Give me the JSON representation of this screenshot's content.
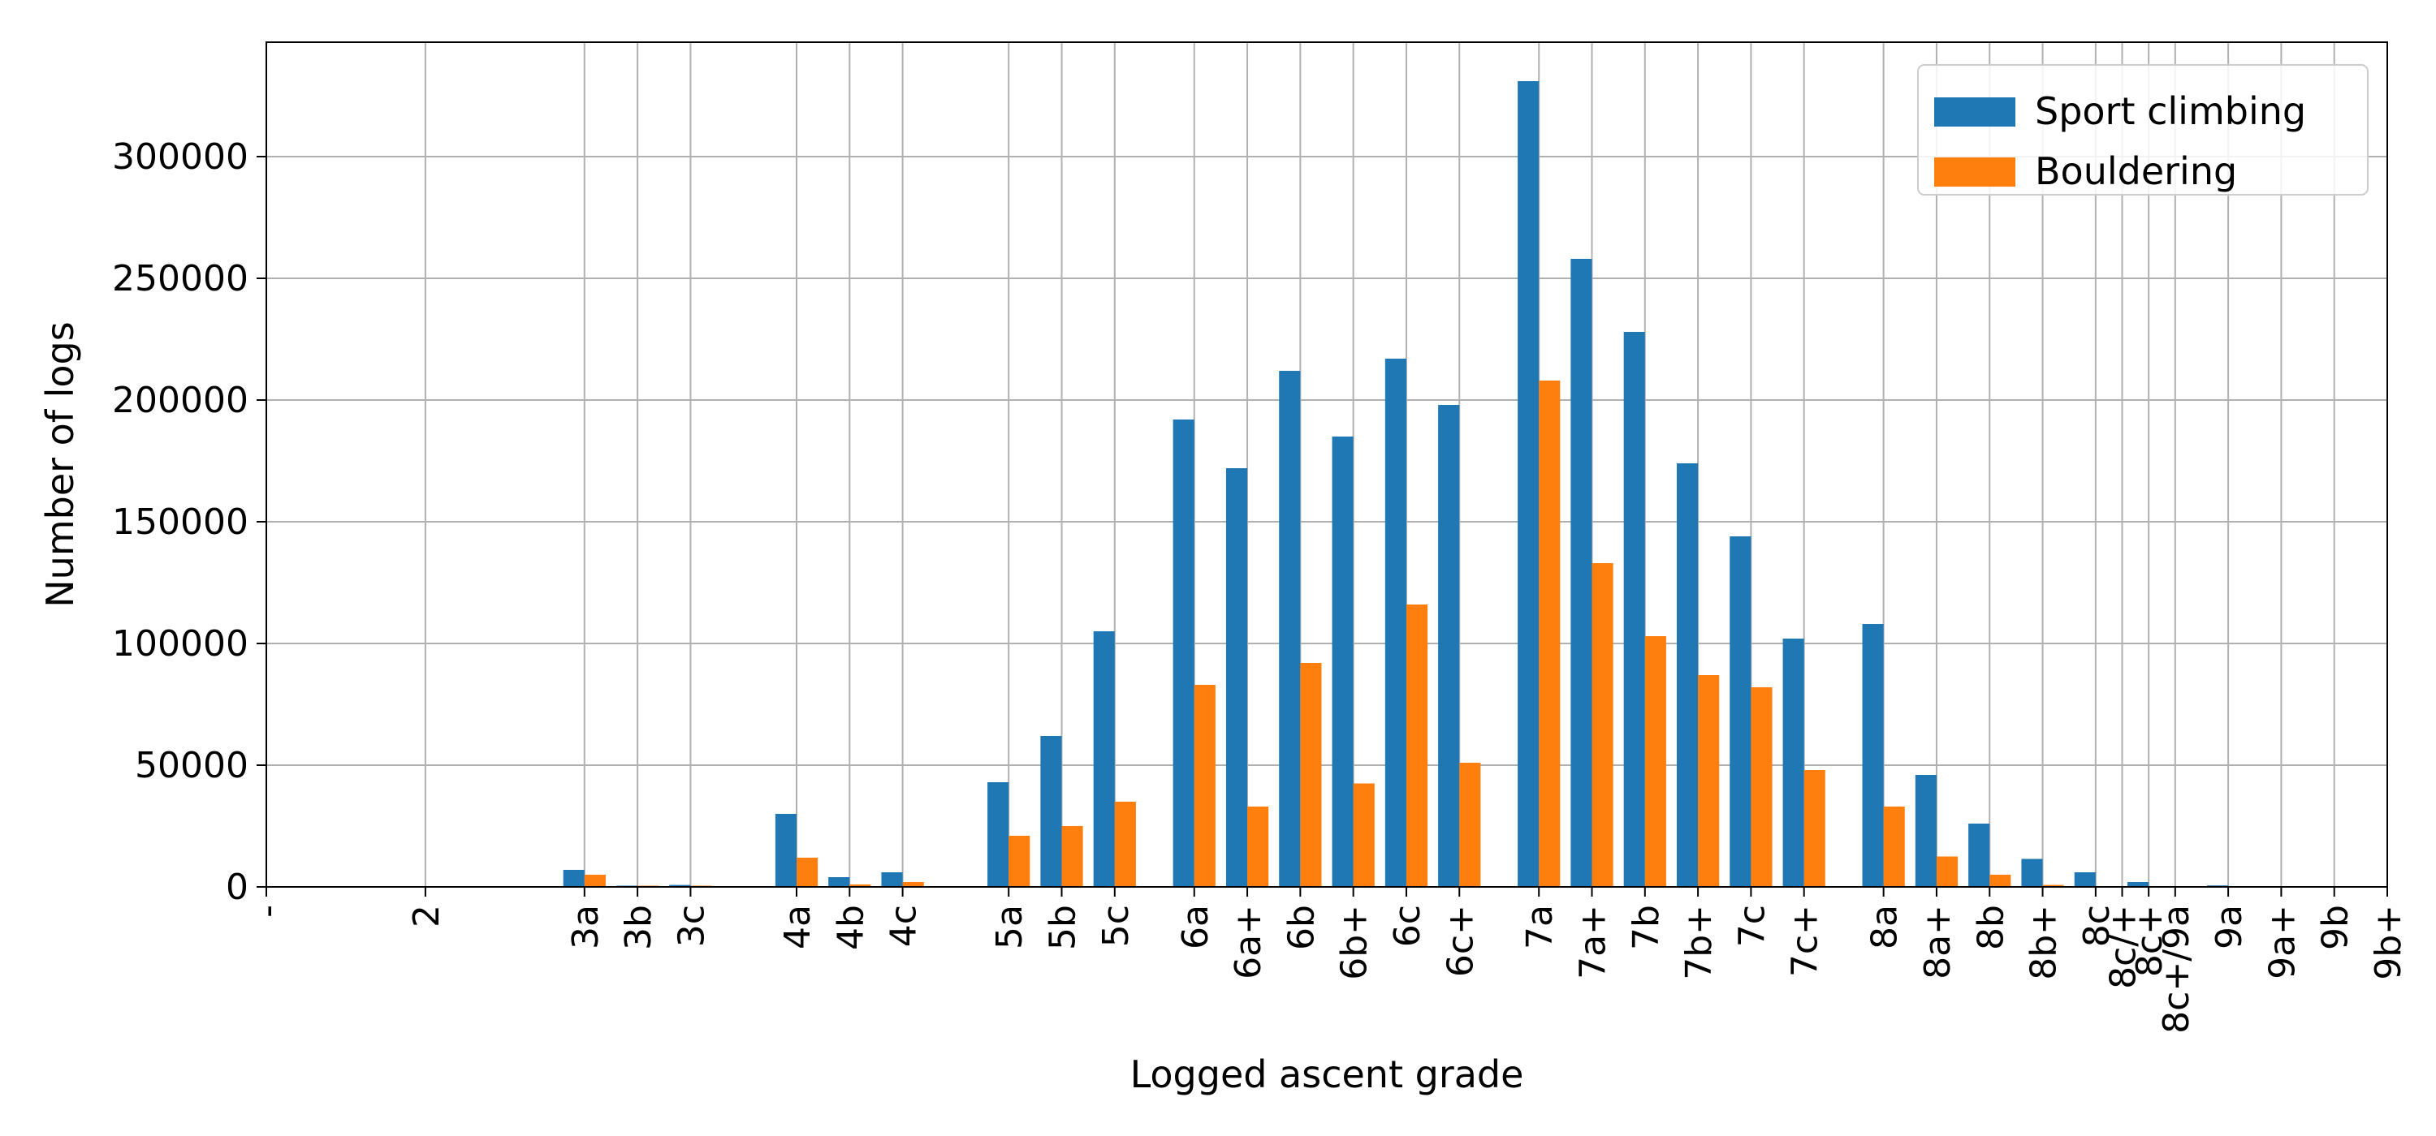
{
  "chart_data": {
    "type": "bar",
    "xlabel": "Logged ascent grade",
    "ylabel": "Number of logs",
    "ylim": [
      0,
      347000
    ],
    "yticks": [
      0,
      50000,
      100000,
      150000,
      200000,
      250000,
      300000
    ],
    "grid": true,
    "legend": "top-right",
    "x_range": [
      0,
      40
    ],
    "ticks": [
      {
        "label": "-",
        "x": 0
      },
      {
        "label": "2",
        "x": 3
      },
      {
        "label": "3a",
        "x": 6
      },
      {
        "label": "3b",
        "x": 7
      },
      {
        "label": "3c",
        "x": 8
      },
      {
        "label": "4a",
        "x": 10
      },
      {
        "label": "4b",
        "x": 11
      },
      {
        "label": "4c",
        "x": 12
      },
      {
        "label": "5a",
        "x": 14
      },
      {
        "label": "5b",
        "x": 15
      },
      {
        "label": "5c",
        "x": 16
      },
      {
        "label": "6a",
        "x": 17.5
      },
      {
        "label": "6a+",
        "x": 18.5
      },
      {
        "label": "6b",
        "x": 19.5
      },
      {
        "label": "6b+",
        "x": 20.5
      },
      {
        "label": "6c",
        "x": 21.5
      },
      {
        "label": "6c+",
        "x": 22.5
      },
      {
        "label": "7a",
        "x": 24
      },
      {
        "label": "7a+",
        "x": 25
      },
      {
        "label": "7b",
        "x": 26
      },
      {
        "label": "7b+",
        "x": 27
      },
      {
        "label": "7c",
        "x": 28
      },
      {
        "label": "7c+",
        "x": 29
      },
      {
        "label": "8a",
        "x": 30.5
      },
      {
        "label": "8a+",
        "x": 31.5
      },
      {
        "label": "8b",
        "x": 32.5
      },
      {
        "label": "8b+",
        "x": 33.5
      },
      {
        "label": "8c",
        "x": 34.5
      },
      {
        "label": "8c/+",
        "x": 35
      },
      {
        "label": "8c+",
        "x": 35.5
      },
      {
        "label": "8c+/9a",
        "x": 36
      },
      {
        "label": "9a",
        "x": 37
      },
      {
        "label": "9a+",
        "x": 38
      },
      {
        "label": "9b",
        "x": 39
      },
      {
        "label": "9b+",
        "x": 40
      }
    ],
    "series": [
      {
        "name": "Sport climbing",
        "color": "#1f77b4",
        "points": [
          {
            "x": 6,
            "value": 7000
          },
          {
            "x": 7,
            "value": 500
          },
          {
            "x": 8,
            "value": 800
          },
          {
            "x": 10,
            "value": 30000
          },
          {
            "x": 11,
            "value": 4000
          },
          {
            "x": 12,
            "value": 6000
          },
          {
            "x": 14,
            "value": 43000
          },
          {
            "x": 15,
            "value": 62000
          },
          {
            "x": 16,
            "value": 105000
          },
          {
            "x": 17.5,
            "value": 192000
          },
          {
            "x": 18.5,
            "value": 172000
          },
          {
            "x": 19.5,
            "value": 212000
          },
          {
            "x": 20.5,
            "value": 185000
          },
          {
            "x": 21.5,
            "value": 217000
          },
          {
            "x": 22.5,
            "value": 198000
          },
          {
            "x": 24,
            "value": 331000
          },
          {
            "x": 25,
            "value": 258000
          },
          {
            "x": 26,
            "value": 228000
          },
          {
            "x": 27,
            "value": 174000
          },
          {
            "x": 28,
            "value": 144000
          },
          {
            "x": 29,
            "value": 102000
          },
          {
            "x": 30.5,
            "value": 108000
          },
          {
            "x": 31.5,
            "value": 46000
          },
          {
            "x": 32.5,
            "value": 26000
          },
          {
            "x": 33.5,
            "value": 11500
          },
          {
            "x": 34.5,
            "value": 6000
          },
          {
            "x": 35.5,
            "value": 2000
          },
          {
            "x": 36,
            "value": 300
          },
          {
            "x": 37,
            "value": 600
          }
        ]
      },
      {
        "name": "Bouldering",
        "color": "#ff7f0e",
        "points": [
          {
            "x": 3,
            "value": 300
          },
          {
            "x": 6,
            "value": 5000
          },
          {
            "x": 7,
            "value": 500
          },
          {
            "x": 8,
            "value": 500
          },
          {
            "x": 10,
            "value": 12000
          },
          {
            "x": 11,
            "value": 1000
          },
          {
            "x": 12,
            "value": 2000
          },
          {
            "x": 14,
            "value": 21000
          },
          {
            "x": 15,
            "value": 25000
          },
          {
            "x": 16,
            "value": 35000
          },
          {
            "x": 17.5,
            "value": 83000
          },
          {
            "x": 18.5,
            "value": 33000
          },
          {
            "x": 19.5,
            "value": 92000
          },
          {
            "x": 20.5,
            "value": 42500
          },
          {
            "x": 21.5,
            "value": 116000
          },
          {
            "x": 22.5,
            "value": 51000
          },
          {
            "x": 24,
            "value": 208000
          },
          {
            "x": 25,
            "value": 133000
          },
          {
            "x": 26,
            "value": 103000
          },
          {
            "x": 27,
            "value": 87000
          },
          {
            "x": 28,
            "value": 82000
          },
          {
            "x": 29,
            "value": 48000
          },
          {
            "x": 30.5,
            "value": 33000
          },
          {
            "x": 31.5,
            "value": 12500
          },
          {
            "x": 32.5,
            "value": 5000
          },
          {
            "x": 33.5,
            "value": 800
          }
        ]
      }
    ]
  }
}
